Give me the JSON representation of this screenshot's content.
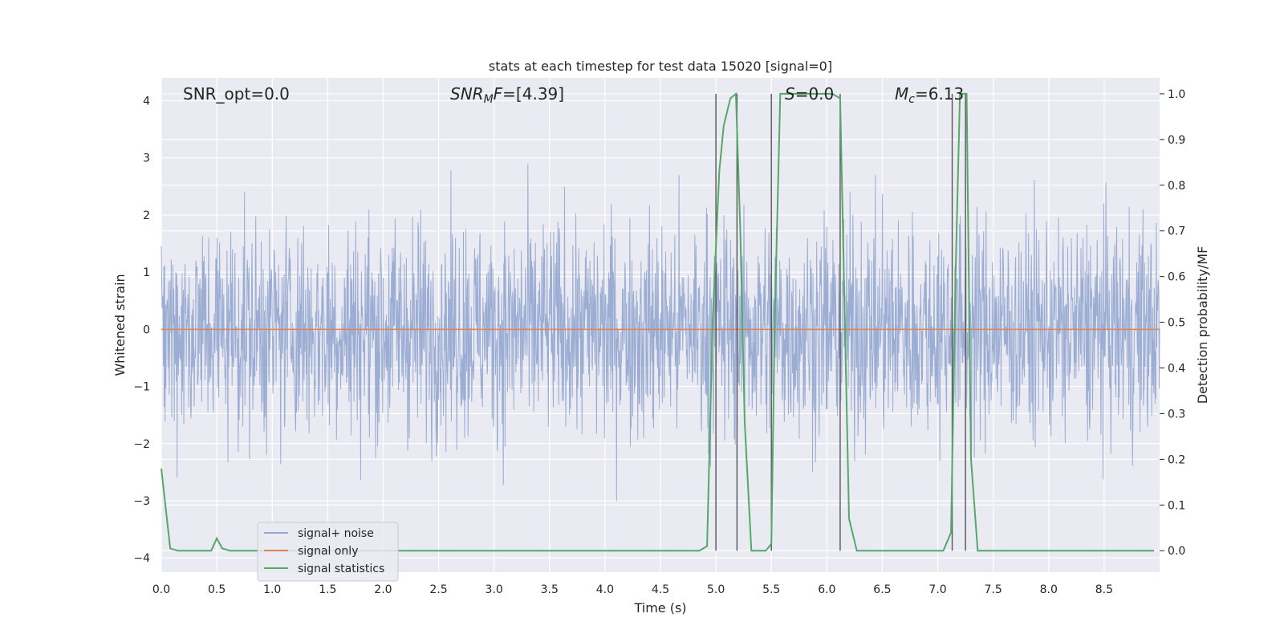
{
  "chart_data": {
    "type": "line",
    "title": "stats at each timestep for test data 15020 [signal=0]",
    "xlabel": "Time (s)",
    "ylabel": "Whitened strain",
    "y2label": "Detection probability/MF",
    "xlim": [
      0,
      9.0
    ],
    "ylim": [
      -4.25,
      4.4
    ],
    "y2lim": [
      -0.047,
      1.035
    ],
    "grid": true,
    "legend_position": "lower-left",
    "x_ticks": [
      "0.0",
      "0.5",
      "1.0",
      "1.5",
      "2.0",
      "2.5",
      "3.0",
      "3.5",
      "4.0",
      "4.5",
      "5.0",
      "5.5",
      "6.0",
      "6.5",
      "7.0",
      "7.5",
      "8.0",
      "8.5"
    ],
    "y_ticks": [
      "−4",
      "−3",
      "−2",
      "−1",
      "0",
      "1",
      "2",
      "3",
      "4"
    ],
    "y2_ticks": [
      "0.0",
      "0.1",
      "0.2",
      "0.3",
      "0.4",
      "0.5",
      "0.6",
      "0.7",
      "0.8",
      "0.9",
      "1.0"
    ],
    "annotations": {
      "snr_opt": "SNR_opt=0.0",
      "snr_mf_main": "SNR",
      "snr_mf_sub": "M",
      "snr_mf_f": "F",
      "snr_mf_value": "=[4.39]",
      "s_var": "S",
      "s_value": "=0.0",
      "mc_var": "M",
      "mc_sub": "c",
      "mc_value": "=6.13"
    },
    "series": [
      {
        "name": "signal+ noise",
        "color": "#92a6cf",
        "description_range": [
          -3.9,
          3.7
        ],
        "envelope": {
          "typical_max": 2.0,
          "typical_min": -1.9,
          "peak_max": 3.7,
          "peak_min": -3.9
        }
      },
      {
        "name": "signal only",
        "color": "#dd8452",
        "x": [
          0,
          9.0
        ],
        "y": [
          0,
          0
        ]
      },
      {
        "name": "signal statistics",
        "color": "#55a868",
        "axis": "right",
        "x": [
          0.0,
          0.08,
          0.15,
          0.45,
          0.5,
          0.55,
          0.62,
          4.85,
          4.92,
          4.97,
          5.03,
          5.07,
          5.13,
          5.18,
          5.22,
          5.26,
          5.32,
          5.45,
          5.5,
          5.53,
          5.58,
          6.05,
          6.12,
          6.2,
          6.27,
          7.05,
          7.12,
          7.16,
          7.2,
          7.26,
          7.3,
          7.36,
          8.95
        ],
        "y": [
          0.18,
          0.005,
          0.0,
          0.0,
          0.027,
          0.005,
          0.0,
          0.0,
          0.01,
          0.5,
          0.83,
          0.93,
          0.99,
          1.0,
          0.7,
          0.28,
          0.0,
          0.0,
          0.015,
          0.5,
          1.0,
          1.0,
          0.99,
          0.07,
          0.0,
          0.0,
          0.04,
          0.6,
          1.0,
          1.0,
          0.2,
          0.0,
          0.0
        ]
      }
    ],
    "vertical_lines_x": [
      5.0,
      5.19,
      5.5,
      6.12,
      7.13,
      7.25
    ]
  }
}
